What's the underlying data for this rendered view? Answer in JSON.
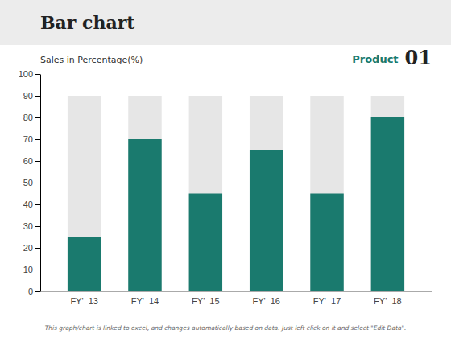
{
  "chart_data": {
    "type": "bar",
    "title": "Bar chart",
    "ylabel": "Sales in Percentage(%)",
    "categories": [
      "FY'  13",
      "FY'  14",
      "FY'  15",
      "FY'  16",
      "FY'  17",
      "FY'  18"
    ],
    "values": [
      25,
      70,
      45,
      65,
      45,
      80
    ],
    "background_values": [
      90,
      90,
      90,
      90,
      90,
      90
    ],
    "color": "#1a7a6e",
    "ylim": [
      0,
      100
    ],
    "yticks": [
      0,
      10,
      20,
      30,
      40,
      50,
      60,
      70,
      80,
      90,
      100
    ],
    "grid": false,
    "annotations": [
      "Product",
      "01",
      "This graph/chart is linked to excel, and changes automatically based on data. Just left click on it and select \"Edit Data\"."
    ]
  }
}
